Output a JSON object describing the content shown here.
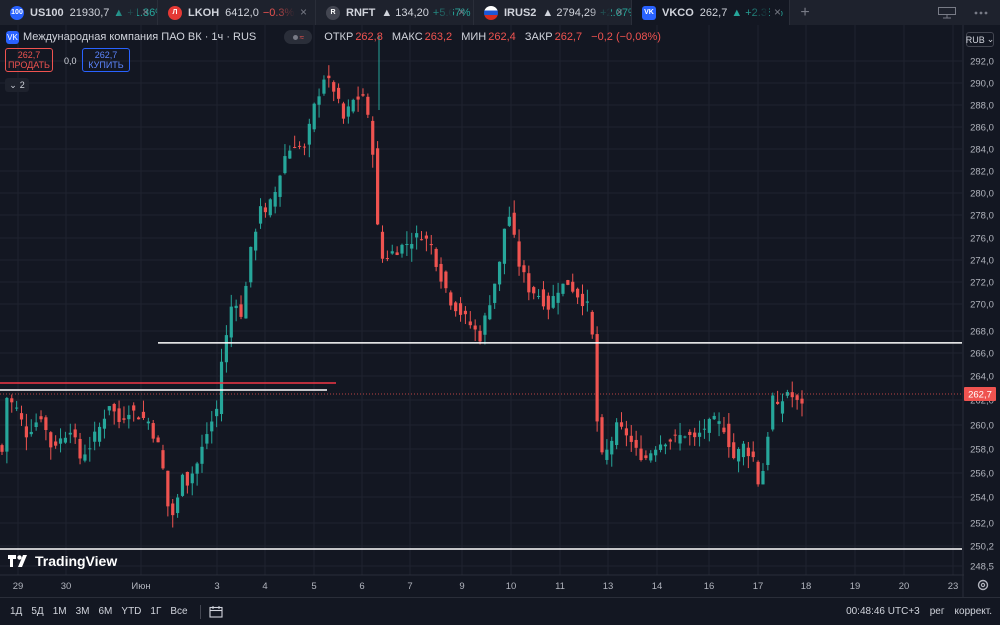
{
  "tabs": [
    {
      "icon_text": "100",
      "icon_color": "#2962ff",
      "symbol": "US100",
      "value": "21930,7",
      "change": "▲ +1.36%",
      "dir": "up",
      "close": "×"
    },
    {
      "icon_text": "Л",
      "icon_color": "#e53935",
      "symbol": "LKOH",
      "value": "6412,0",
      "change": "−0.3%",
      "dir": "dn",
      "close": "×"
    },
    {
      "icon_text": "R",
      "icon_color": "#434651",
      "symbol": "RNFT",
      "value": "▲ 134,20",
      "change": "+5.67%",
      "dir": "up",
      "close": "×"
    },
    {
      "icon_text": "",
      "icon_color": "#ffffff",
      "symbol": "IRUS2",
      "value": "▲ 2794,29",
      "change": "+2.07%",
      "dir": "up",
      "close": "×"
    },
    {
      "icon_text": "VK",
      "icon_color": "#2962ff",
      "symbol": "VKCO",
      "value": "262,7",
      "change": "▲ +2.38%",
      "dir": "up",
      "close": "×",
      "active": true
    }
  ],
  "tab_add": "+",
  "icons": {
    "layout": "layout-icon",
    "more": "more-icon",
    "settings": "gear-icon",
    "calendar": "calendar-range-icon"
  },
  "legend": {
    "icon_text": "VK",
    "name": "Международная компания ПАО ВК · 1ч · RUS",
    "pill": "≈",
    "open_label": "ОТКР",
    "open": "262,8",
    "high_label": "МАКС",
    "high": "263,2",
    "low_label": "МИН",
    "low": "262,4",
    "close_label": "ЗАКР",
    "close": "262,7",
    "change": "−0,2 (−0,08%)"
  },
  "trade": {
    "sell_price": "262,7",
    "sell_label": "ПРОДАТЬ",
    "spread": "0,0",
    "buy_price": "262,7",
    "buy_label": "КУПИТЬ"
  },
  "collapse": {
    "arrow": "⌄",
    "count": "2"
  },
  "currency": {
    "label": "RUB",
    "arrow": "⌄"
  },
  "watermark": "TradingView",
  "bottom": {
    "timeframes": [
      "1Д",
      "5Д",
      "1М",
      "3М",
      "6М",
      "YTD",
      "1Г",
      "Все"
    ],
    "time": "00:48:46 UTC+3",
    "session": "рег",
    "adjust": "коррект."
  },
  "colors": {
    "up": "#26a69a",
    "down": "#ef5350",
    "bg": "#131722",
    "grid": "#1f2330",
    "level": "#ffffff",
    "level_red": "#f23645"
  },
  "chart_data": {
    "type": "candlestick",
    "timeframe": "1ч",
    "currency": "RUB",
    "y_ticks": [
      "292,0",
      "290,0",
      "288,0",
      "286,0",
      "284,0",
      "282,0",
      "280,0",
      "278,0",
      "276,0",
      "274,0",
      "272,0",
      "270,0",
      "268,0",
      "266,0",
      "264,0",
      "262,0",
      "260,0",
      "258,0",
      "256,0",
      "254,0",
      "252,0",
      "250,2",
      "248,5"
    ],
    "ylim": [
      248,
      294
    ],
    "x_labels": [
      "29",
      "30",
      "Июн",
      "3",
      "4",
      "5",
      "6",
      "7",
      "9",
      "10",
      "11",
      "13",
      "14",
      "16",
      "17",
      "18",
      "19",
      "20",
      "23"
    ],
    "last_price": "262,7",
    "series_close_approx": [
      [
        0,
        258.5
      ],
      [
        1,
        263
      ],
      [
        3,
        262
      ],
      [
        5,
        260
      ],
      [
        8,
        261.5
      ],
      [
        10,
        259
      ],
      [
        12,
        259.5
      ],
      [
        14,
        260.5
      ],
      [
        16,
        258
      ],
      [
        18,
        259
      ],
      [
        20,
        260.5
      ],
      [
        22,
        262.5
      ],
      [
        24,
        261
      ],
      [
        26,
        262
      ],
      [
        28,
        261.5
      ],
      [
        30,
        261
      ],
      [
        32,
        259
      ],
      [
        33,
        257
      ],
      [
        34,
        254
      ],
      [
        35,
        253.3
      ],
      [
        36,
        254.5
      ],
      [
        37,
        257
      ],
      [
        38,
        256
      ],
      [
        40,
        257.5
      ],
      [
        42,
        260
      ],
      [
        44,
        262
      ],
      [
        45,
        266
      ],
      [
        46,
        268
      ],
      [
        47,
        270.5
      ],
      [
        48,
        271
      ],
      [
        49,
        269.5
      ],
      [
        50,
        272.5
      ],
      [
        51,
        275
      ],
      [
        52,
        277
      ],
      [
        53,
        279
      ],
      [
        54,
        278
      ],
      [
        56,
        280
      ],
      [
        58,
        283
      ],
      [
        60,
        284
      ],
      [
        62,
        283.5
      ],
      [
        64,
        287
      ],
      [
        66,
        289.5
      ],
      [
        68,
        288.5
      ],
      [
        70,
        286
      ],
      [
        72,
        287.5
      ],
      [
        74,
        288
      ],
      [
        75,
        286
      ],
      [
        76,
        283.5
      ],
      [
        77,
        277
      ],
      [
        78,
        274.5
      ],
      [
        80,
        275
      ],
      [
        82,
        275.5
      ],
      [
        84,
        276
      ],
      [
        86,
        276.5
      ],
      [
        88,
        275.5
      ],
      [
        90,
        273
      ],
      [
        92,
        271
      ],
      [
        94,
        270
      ],
      [
        96,
        269
      ],
      [
        98,
        268
      ],
      [
        100,
        271
      ],
      [
        102,
        274
      ],
      [
        103,
        277
      ],
      [
        104,
        278
      ],
      [
        106,
        274
      ],
      [
        108,
        272
      ],
      [
        110,
        271.5
      ],
      [
        112,
        270.5
      ],
      [
        114,
        272
      ],
      [
        116,
        272.5
      ],
      [
        118,
        271.5
      ],
      [
        120,
        270.5
      ],
      [
        121,
        268
      ],
      [
        122,
        261
      ],
      [
        123,
        258
      ],
      [
        124,
        258.5
      ],
      [
        126,
        260.5
      ],
      [
        128,
        260
      ],
      [
        130,
        258.5
      ],
      [
        132,
        258
      ],
      [
        134,
        259
      ],
      [
        136,
        259.5
      ],
      [
        138,
        259.5
      ],
      [
        140,
        260
      ],
      [
        142,
        259.5
      ],
      [
        144,
        260.5
      ],
      [
        146,
        261
      ],
      [
        148,
        260.5
      ],
      [
        150,
        258
      ],
      [
        152,
        259
      ],
      [
        154,
        258
      ],
      [
        155,
        256
      ],
      [
        156,
        257
      ],
      [
        157,
        260
      ],
      [
        158,
        263
      ],
      [
        159,
        262
      ],
      [
        161,
        263.5
      ],
      [
        162,
        263
      ],
      [
        163,
        262.5
      ],
      [
        164,
        262.7
      ]
    ],
    "annotations": {
      "horizontal_lines": [
        {
          "price": 267.5,
          "color": "white"
        },
        {
          "price": 263.3,
          "color": "red"
        },
        {
          "price": 262.8,
          "color": "white"
        },
        {
          "price": 250.2,
          "color": "white"
        }
      ]
    }
  }
}
